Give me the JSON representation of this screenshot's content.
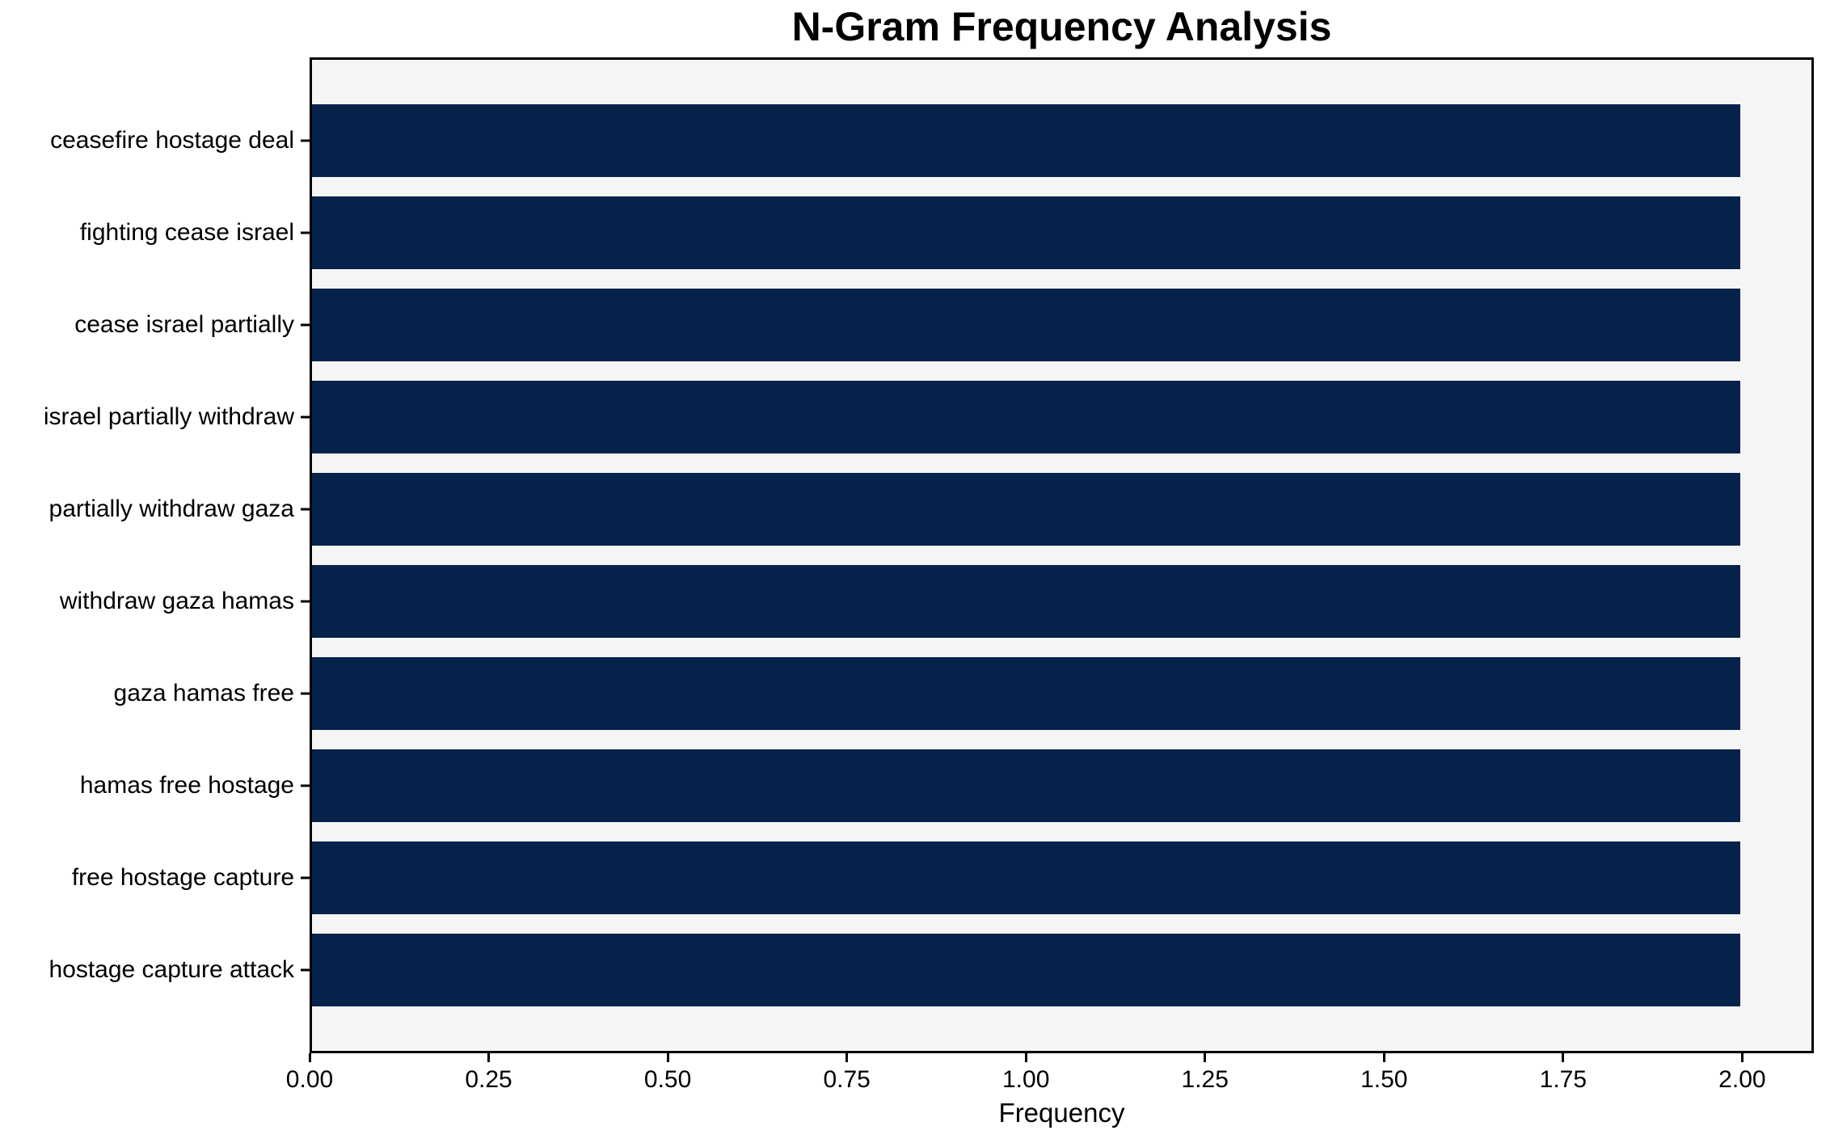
{
  "chart_data": {
    "type": "bar",
    "orientation": "horizontal",
    "title": "N-Gram Frequency Analysis",
    "xlabel": "Frequency",
    "ylabel": "",
    "categories": [
      "ceasefire hostage deal",
      "fighting cease israel",
      "cease israel partially",
      "israel partially withdraw",
      "partially withdraw gaza",
      "withdraw gaza hamas",
      "gaza hamas free",
      "hamas free hostage",
      "free hostage capture",
      "hostage capture attack"
    ],
    "values": [
      2,
      2,
      2,
      2,
      2,
      2,
      2,
      2,
      2,
      2
    ],
    "xlim": [
      0,
      2.1
    ],
    "xticks": [
      0,
      0.25,
      0.5,
      0.75,
      1.0,
      1.25,
      1.5,
      1.75,
      2.0
    ],
    "xtick_labels": [
      "0.00",
      "0.25",
      "0.50",
      "0.75",
      "1.00",
      "1.25",
      "1.50",
      "1.75",
      "2.00"
    ],
    "grid": false,
    "legend": null,
    "colors": {
      "bar": "#04224a",
      "plot_background": "#f5f5f5",
      "figure_background": "#ffffff",
      "spine": "#000000",
      "text": "#000000"
    }
  }
}
